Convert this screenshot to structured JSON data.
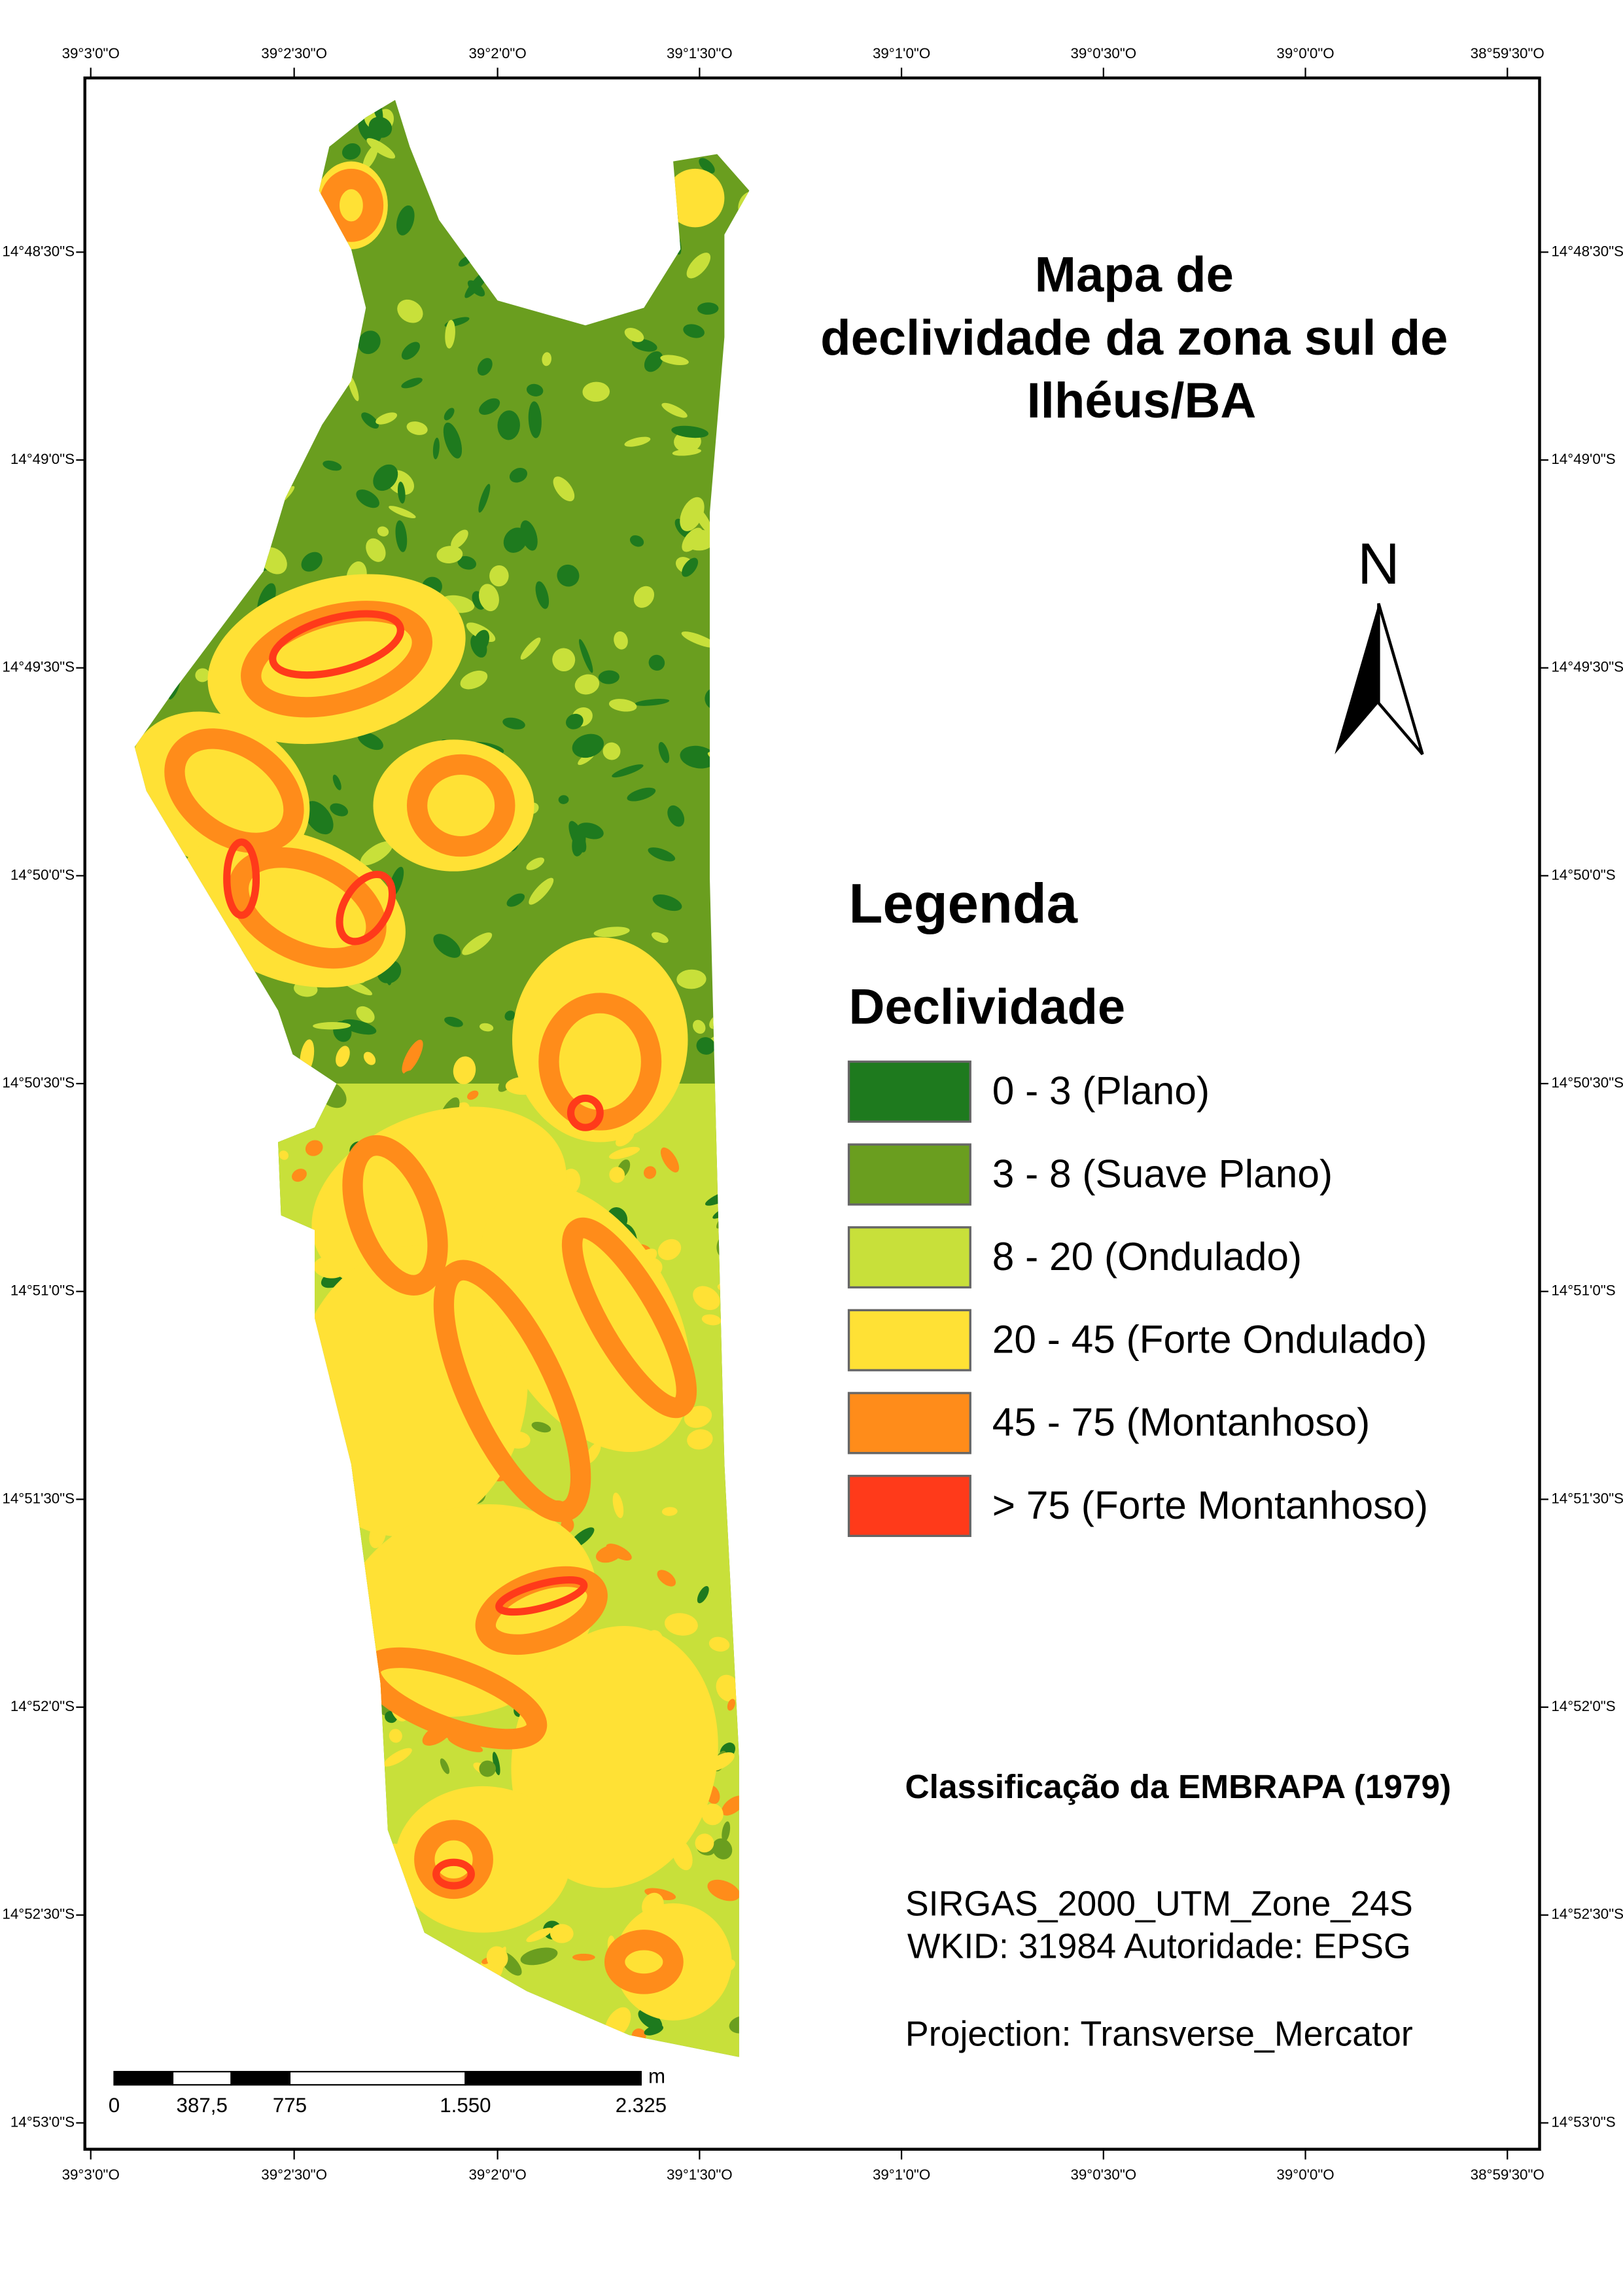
{
  "map": {
    "title": [
      "Mapa de",
      "declividade da zona sul de",
      "Ilhéus/BA"
    ],
    "top_labels": [
      "39°3'0\"O",
      "39°2'30\"O",
      "39°2'0\"O",
      "39°1'30\"O",
      "39°1'0\"O",
      "39°0'30\"O",
      "39°0'0\"O",
      "38°59'30\"O"
    ],
    "bottom_labels": [
      "39°3'0\"O",
      "39°2'30\"O",
      "39°2'0\"O",
      "39°1'30\"O",
      "39°1'0\"O",
      "39°0'30\"O",
      "39°0'0\"O",
      "38°59'30\"O"
    ],
    "left_labels": [
      "14°48'30\"S",
      "14°49'0\"S",
      "14°49'30\"S",
      "14°50'0\"S",
      "14°50'30\"S",
      "14°51'0\"S",
      "14°51'30\"S",
      "14°52'0\"S",
      "14°52'30\"S",
      "14°53'0\"S"
    ],
    "right_labels": [
      "14°48'30\"S",
      "14°49'0\"S",
      "14°49'30\"S",
      "14°50'0\"S",
      "14°50'30\"S",
      "14°51'0\"S",
      "14°51'30\"S",
      "14°52'0\"S",
      "14°52'30\"S",
      "14°53'0\"S"
    ],
    "north": "N",
    "legend": {
      "title": "Legenda",
      "subtitle": "Declividade",
      "items": [
        {
          "label": "0 - 3 (Plano)",
          "color": "#1e7a1e"
        },
        {
          "label": "3 - 8 (Suave Plano)",
          "color": "#6a9e1f"
        },
        {
          "label": "8 - 20 (Ondulado)",
          "color": "#c8e03a"
        },
        {
          "label": "20 - 45 (Forte Ondulado)",
          "color": "#ffe135"
        },
        {
          "label": "45 - 75 (Montanhoso)",
          "color": "#ff8c1a"
        },
        {
          "label": "> 75 (Forte Montanhoso)",
          "color": "#ff3a1a"
        }
      ]
    },
    "classification": "Classificação da EMBRAPA (1979)",
    "projection": [
      "SIRGAS_2000_UTM_Zone_24S",
      "WKID: 31984 Autoridade: EPSG",
      "Projection: Transverse_Mercator"
    ],
    "scale_bar": {
      "labels": [
        "0",
        "387,5",
        "775",
        "1.550",
        "2.325"
      ],
      "unit": "m"
    }
  }
}
